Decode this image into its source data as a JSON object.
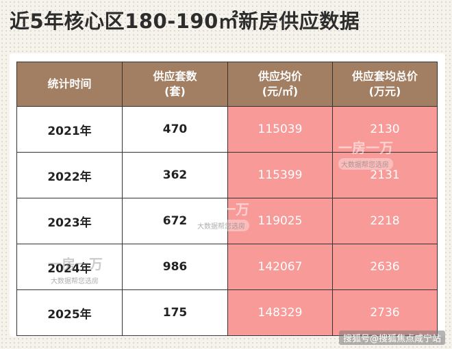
{
  "title": "近5年核心区180-190㎡新房供应数据",
  "headers": [
    "统计时间",
    "供应套数\n(套)",
    "供应均价\n(元/㎡)",
    "供应套均总价\n(万元)"
  ],
  "chart_data": {
    "type": "table",
    "title": "近5年核心区180-190㎡新房供应数据",
    "columns": [
      "统计时间",
      "供应套数(套)",
      "供应均价(元/㎡)",
      "供应套均总价(万元)"
    ],
    "rows": [
      [
        "2021年",
        "470",
        "115039",
        "2130"
      ],
      [
        "2022年",
        "362",
        "115399",
        "2131"
      ],
      [
        "2023年",
        "672",
        "119025",
        "2218"
      ],
      [
        "2024年",
        "986",
        "142067",
        "2636"
      ],
      [
        "2025年",
        "175",
        "148329",
        "2736"
      ]
    ]
  },
  "watermark": {
    "brand": "一房一万",
    "slogan": "大数据帮您选房"
  },
  "footer": "搜狐号@搜狐焦点咸宁站",
  "colors": {
    "header_bg": "#a27e62",
    "highlight_bg": "#f89a98"
  }
}
